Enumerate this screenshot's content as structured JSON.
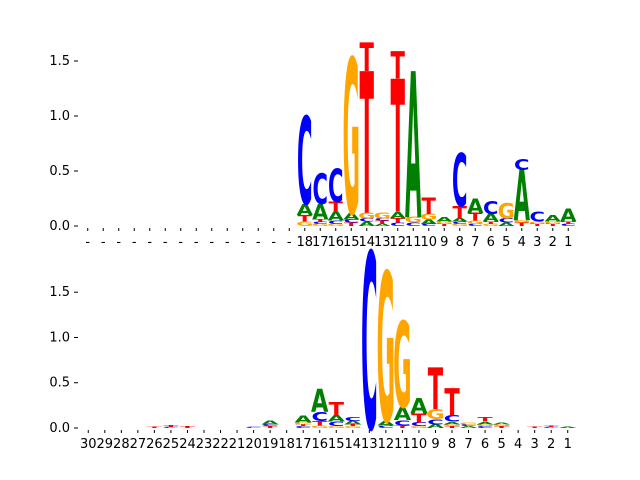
{
  "colors": {
    "A": "#008000",
    "C": "#0000ff",
    "G": "#ffa500",
    "T": "#ff0000",
    "axis": "#000000"
  },
  "chart_data": [
    {
      "type": "sequence-logo",
      "ylim": [
        0,
        1.6
      ],
      "yticks": [
        "0.0",
        "0.5",
        "1.0",
        "1.5"
      ],
      "xlabels": [
        "-",
        "-",
        "-",
        "-",
        "-",
        "-",
        "-",
        "-",
        "-",
        "-",
        "-",
        "-",
        "-",
        "-",
        "18",
        "17",
        "16",
        "15",
        "14",
        "13",
        "12",
        "11",
        "10",
        "9",
        "8",
        "7",
        "6",
        "5",
        "4",
        "3",
        "2",
        "1"
      ],
      "columns": [
        [],
        [],
        [],
        [],
        [],
        [],
        [],
        [],
        [],
        [],
        [],
        [],
        [],
        [],
        [
          [
            "G",
            0.04
          ],
          [
            "T",
            0.06
          ],
          [
            "A",
            0.1
          ],
          [
            "C",
            0.8
          ]
        ],
        [
          [
            "G",
            0.02
          ],
          [
            "C",
            0.02
          ],
          [
            "T",
            0.02
          ],
          [
            "A",
            0.14
          ],
          [
            "C",
            0.28
          ]
        ],
        [
          [
            "G",
            0.02
          ],
          [
            "C",
            0.03
          ],
          [
            "A",
            0.08
          ],
          [
            "T",
            0.09
          ],
          [
            "C",
            0.3
          ]
        ],
        [
          [
            "T",
            0.03
          ],
          [
            "C",
            0.03
          ],
          [
            "A",
            0.06
          ],
          [
            "G",
            1.41
          ]
        ],
        [
          [
            "A",
            0.04
          ],
          [
            "C",
            0.03
          ],
          [
            "G",
            0.05
          ],
          [
            "T",
            1.29
          ],
          [
            "T",
            0.26
          ]
        ],
        [
          [
            "A",
            0.02
          ],
          [
            "T",
            0.03
          ],
          [
            "C",
            0.02
          ],
          [
            "G",
            0.05
          ]
        ],
        [
          [
            "C",
            0.03
          ],
          [
            "T",
            0.04
          ],
          [
            "A",
            0.06
          ],
          [
            "T",
            1.21
          ],
          [
            "T",
            0.25
          ]
        ],
        [
          [
            "C",
            0.03
          ],
          [
            "G",
            0.05
          ],
          [
            "A",
            1.33
          ]
        ],
        [
          [
            "C",
            0.02
          ],
          [
            "A",
            0.04
          ],
          [
            "G",
            0.05
          ],
          [
            "T",
            0.15
          ]
        ],
        [
          [
            "T",
            0.02
          ],
          [
            "G",
            0.02
          ],
          [
            "A",
            0.04
          ]
        ],
        [
          [
            "G",
            0.02
          ],
          [
            "C",
            0.02
          ],
          [
            "A",
            0.03
          ],
          [
            "T",
            0.11
          ],
          [
            "C",
            0.48
          ]
        ],
        [
          [
            "C",
            0.02
          ],
          [
            "G",
            0.03
          ],
          [
            "T",
            0.07
          ],
          [
            "A",
            0.13
          ]
        ],
        [
          [
            "G",
            0.02
          ],
          [
            "T",
            0.02
          ],
          [
            "A",
            0.07
          ],
          [
            "C",
            0.12
          ]
        ],
        [
          [
            "A",
            0.03
          ],
          [
            "C",
            0.04
          ],
          [
            "G",
            0.14
          ]
        ],
        [
          [
            "T",
            0.03
          ],
          [
            "G",
            0.02
          ],
          [
            "A",
            0.46
          ],
          [
            "C",
            0.1
          ]
        ],
        [
          [
            "T",
            0.02
          ],
          [
            "G",
            0.02
          ],
          [
            "C",
            0.09
          ]
        ],
        [
          [
            "T",
            0.02
          ],
          [
            "G",
            0.02
          ],
          [
            "A",
            0.06
          ]
        ],
        [
          [
            "C",
            0.02
          ],
          [
            "T",
            0.02
          ],
          [
            "A",
            0.12
          ]
        ]
      ]
    },
    {
      "type": "sequence-logo",
      "ylim": [
        0,
        1.9
      ],
      "yticks": [
        "0.0",
        "0.5",
        "1.0",
        "1.5"
      ],
      "xlabels": [
        "30",
        "29",
        "28",
        "27",
        "26",
        "25",
        "24",
        "23",
        "22",
        "21",
        "20",
        "19",
        "18",
        "17",
        "16",
        "15",
        "14",
        "13",
        "12",
        "11",
        "10",
        "9",
        "8",
        "7",
        "6",
        "5",
        "4",
        "3",
        "2",
        "1"
      ],
      "columns": [
        [],
        [],
        [],
        [],
        [
          [
            "T",
            0.01
          ]
        ],
        [
          [
            "C",
            0.01
          ],
          [
            "T",
            0.02
          ]
        ],
        [
          [
            "T",
            0.02
          ]
        ],
        [],
        [],
        [],
        [
          [
            "C",
            0.01
          ]
        ],
        [
          [
            "T",
            0.02
          ],
          [
            "C",
            0.02
          ],
          [
            "A",
            0.04
          ]
        ],
        [],
        [
          [
            "C",
            0.02
          ],
          [
            "T",
            0.02
          ],
          [
            "G",
            0.02
          ],
          [
            "A",
            0.08
          ]
        ],
        [
          [
            "G",
            0.03
          ],
          [
            "T",
            0.05
          ],
          [
            "C",
            0.1
          ],
          [
            "A",
            0.25
          ]
        ],
        [
          [
            "G",
            0.02
          ],
          [
            "C",
            0.05
          ],
          [
            "A",
            0.07
          ],
          [
            "T",
            0.15
          ]
        ],
        [
          [
            "G",
            0.02
          ],
          [
            "T",
            0.02
          ],
          [
            "A",
            0.04
          ],
          [
            "C",
            0.04
          ]
        ],
        [
          [
            "C",
            1.95
          ]
        ],
        [
          [
            "C",
            0.03
          ],
          [
            "A",
            0.05
          ],
          [
            "G",
            1.65
          ]
        ],
        [
          [
            "T",
            0.03
          ],
          [
            "C",
            0.06
          ],
          [
            "A",
            0.14
          ],
          [
            "G",
            0.95
          ]
        ],
        [
          [
            "G",
            0.02
          ],
          [
            "C",
            0.04
          ],
          [
            "T",
            0.1
          ],
          [
            "A",
            0.17
          ]
        ],
        [
          [
            "A",
            0.04
          ],
          [
            "C",
            0.06
          ],
          [
            "G",
            0.11
          ],
          [
            "T",
            0.46
          ]
        ],
        [
          [
            "T",
            0.02
          ],
          [
            "G",
            0.02
          ],
          [
            "A",
            0.03
          ],
          [
            "C",
            0.07
          ],
          [
            "T",
            0.3
          ]
        ],
        [
          [
            "A",
            0.02
          ],
          [
            "C",
            0.02
          ],
          [
            "G",
            0.02
          ]
        ],
        [
          [
            "C",
            0.02
          ],
          [
            "G",
            0.02
          ],
          [
            "A",
            0.03
          ],
          [
            "T",
            0.05
          ]
        ],
        [
          [
            "T",
            0.02
          ],
          [
            "G",
            0.02
          ],
          [
            "A",
            0.02
          ]
        ],
        [],
        [
          [
            "T",
            0.01
          ]
        ],
        [
          [
            "C",
            0.01
          ],
          [
            "T",
            0.01
          ]
        ],
        [
          [
            "A",
            0.01
          ]
        ]
      ]
    }
  ]
}
